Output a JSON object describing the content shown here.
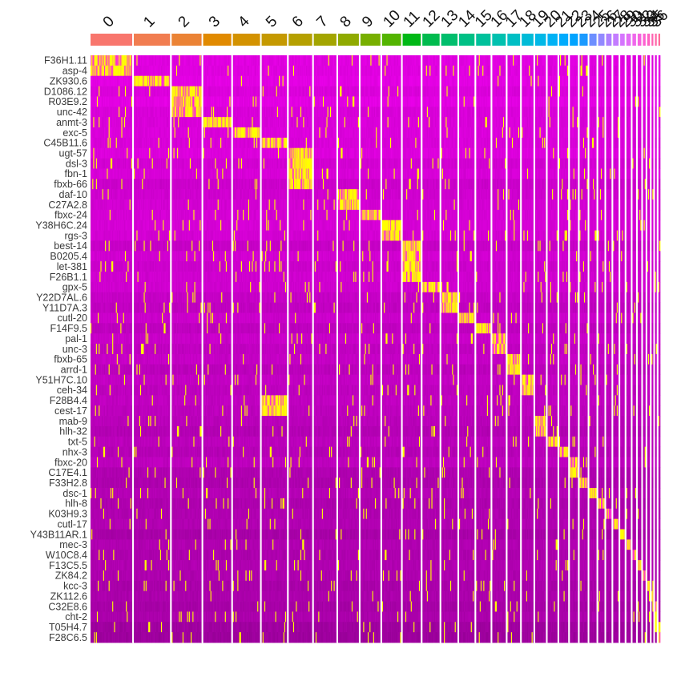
{
  "chart_data": {
    "type": "heatmap",
    "title": "",
    "xlabel": "",
    "ylabel": "",
    "legend": "none",
    "clusters": [
      "0",
      "1",
      "2",
      "3",
      "4",
      "5",
      "6",
      "7",
      "8",
      "9",
      "10",
      "11",
      "12",
      "13",
      "14",
      "15",
      "16",
      "17",
      "18",
      "19",
      "20",
      "21",
      "22",
      "23",
      "24",
      "25",
      "26",
      "27",
      "28",
      "29",
      "30",
      "31",
      "32",
      "33",
      "34",
      "35",
      "36"
    ],
    "cluster_cells": [
      46,
      40,
      33,
      31,
      30,
      28,
      26,
      25,
      23,
      22,
      21,
      20,
      19,
      18,
      17,
      16,
      15,
      14,
      13,
      12,
      11,
      10,
      9,
      9,
      8,
      7,
      6,
      6,
      5,
      5,
      4,
      4,
      3,
      3,
      2,
      2,
      2
    ],
    "cluster_colors": [
      "#F8766D",
      "#F17D50",
      "#EB8335",
      "#E18A00",
      "#D39200",
      "#C59900",
      "#B5A000",
      "#A3A500",
      "#8FAA00",
      "#77AF00",
      "#53B400",
      "#00B816",
      "#00BB4E",
      "#00BE6C",
      "#00C085",
      "#00C19B",
      "#00C1AF",
      "#00BFC4",
      "#00BBD7",
      "#00B8E7",
      "#00B2F5",
      "#00ABFD",
      "#00A3FF",
      "#1A9AFF",
      "#6D8FFF",
      "#9289FF",
      "#AE80FF",
      "#C37CFF",
      "#D575FE",
      "#E36EF6",
      "#EF67EB",
      "#F763DE",
      "#FD61D1",
      "#FF61C2",
      "#FF63B2",
      "#FF66A8",
      "#FF6A9A"
    ],
    "genes": [
      "F36H1.11",
      "asp-4",
      "ZK930.6",
      "D1086.12",
      "R03E9.2",
      "unc-42",
      "anmt-3",
      "exc-5",
      "C45B11.6",
      "ugt-57",
      "dsl-3",
      "fbn-1",
      "fbxb-66",
      "daf-10",
      "C27A2.8",
      "fbxc-24",
      "Y38H6C.24",
      "rgs-3",
      "best-14",
      "B0205.4",
      "let-381",
      "F26B1.1",
      "gpx-5",
      "Y22D7AL.6",
      "Y11D7A.3",
      "cutl-20",
      "F14F9.5",
      "pal-1",
      "unc-3",
      "fbxb-65",
      "arrd-1",
      "Y51H7C.10",
      "ceh-34",
      "F28B4.4",
      "cest-17",
      "mab-9",
      "hlh-32",
      "txt-5",
      "nhx-3",
      "fbxc-20",
      "C17E4.1",
      "F33H2.8",
      "dsc-1",
      "hlh-8",
      "K03H9.3",
      "cutl-17",
      "Y43B11AR.1",
      "mec-3",
      "W10C8.4",
      "F13C5.5",
      "ZK84.2",
      "kcc-3",
      "ZK112.6",
      "C32E8.6",
      "cht-2",
      "T05H4.7",
      "F28C6.5"
    ],
    "marker_clusters": [
      0,
      0,
      1,
      2,
      2,
      2,
      3,
      4,
      5,
      6,
      6,
      6,
      6,
      8,
      8,
      9,
      10,
      10,
      11,
      11,
      11,
      11,
      12,
      13,
      13,
      14,
      15,
      16,
      16,
      17,
      17,
      18,
      18,
      5,
      5,
      19,
      19,
      20,
      21,
      22,
      22,
      23,
      24,
      25,
      26,
      27,
      28,
      29,
      30,
      31,
      32,
      33,
      34,
      35,
      35,
      36,
      36
    ],
    "color_scale": {
      "low": "#7A007A",
      "mid": "#FF00FF",
      "high": "#FFFF00",
      "min": -2.5,
      "max": 2.5
    },
    "cluster_label_rotation": -45
  }
}
